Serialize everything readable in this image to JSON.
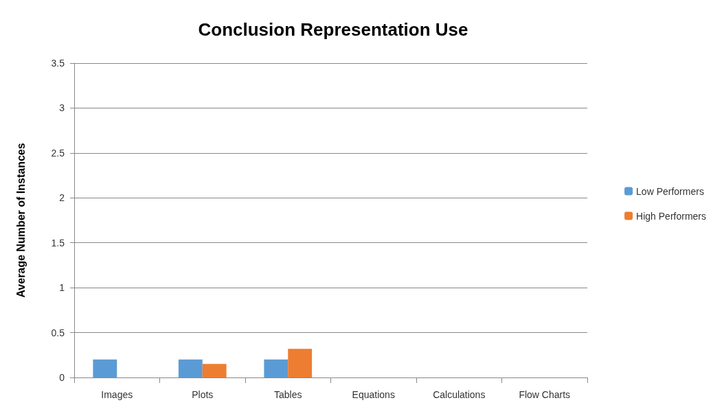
{
  "chart_data": {
    "type": "bar",
    "title": "Conclusion Representation Use",
    "ylabel": "Average Number of Instances",
    "categories": [
      "Images",
      "Plots",
      "Tables",
      "Equations",
      "Calculations",
      "Flow Charts"
    ],
    "series": [
      {
        "name": "Low Performers",
        "color": "#5b9bd5",
        "values": [
          0.2,
          0.2,
          0.2,
          0,
          0,
          0
        ]
      },
      {
        "name": "High Performers",
        "color": "#ed7d31",
        "values": [
          0,
          0.15,
          0.32,
          0,
          0,
          0
        ]
      }
    ],
    "ylim": [
      0,
      3.5
    ],
    "yticks": [
      0,
      0.5,
      1,
      1.5,
      2,
      2.5,
      3,
      3.5
    ],
    "grid": "y",
    "legend": "right"
  }
}
